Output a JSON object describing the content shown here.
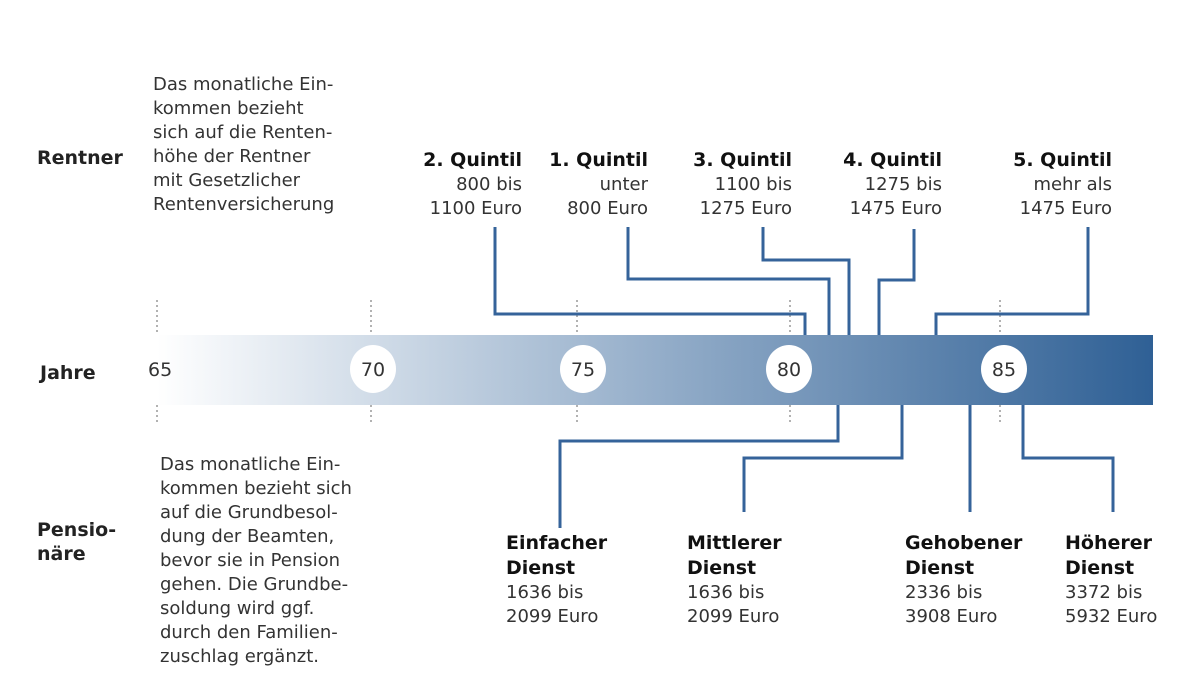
{
  "row_labels": {
    "rentner": "Rentner",
    "jahre": "Jahre",
    "pensionaere": [
      "Pensio-",
      "näre"
    ]
  },
  "rentner_note": [
    "Das monatliche Ein-",
    "kommen bezieht",
    "sich auf die Renten-",
    "höhe der Rentner",
    "mit Gesetzlicher",
    "Rentenversicherung"
  ],
  "pension_note": [
    "Das monatliche Ein-",
    "kommen bezieht sich",
    "auf die Grundbesol-",
    "dung der Beamten,",
    "bevor sie in Pension",
    "gehen. Die Grundbe-",
    "soldung wird ggf.",
    "durch den Familien-",
    "zuschlag ergänzt."
  ],
  "quintiles": [
    {
      "title": "2. Quintil",
      "l1": "800 bis",
      "l2": "1100 Euro"
    },
    {
      "title": "1. Quintil",
      "l1": "unter",
      "l2": "800 Euro"
    },
    {
      "title": "3. Quintil",
      "l1": "1100 bis",
      "l2": "1275 Euro"
    },
    {
      "title": "4. Quintil",
      "l1": "1275 bis",
      "l2": "1475 Euro"
    },
    {
      "title": "5. Quintil",
      "l1": "mehr als",
      "l2": "1475 Euro"
    }
  ],
  "dienste": [
    {
      "t1": "Einfacher",
      "t2": "Dienst",
      "l1": "1636 bis",
      "l2": "2099 Euro"
    },
    {
      "t1": "Mittlerer",
      "t2": "Dienst",
      "l1": "1636 bis",
      "l2": "2099 Euro"
    },
    {
      "t1": "Gehobener",
      "t2": "Dienst",
      "l1": "2336 bis",
      "l2": "3908 Euro"
    },
    {
      "t1": "Höherer",
      "t2": "Dienst",
      "l1": "3372 bis",
      "l2": "5932 Euro"
    }
  ],
  "axis_ticks": [
    "65",
    "70",
    "75",
    "80",
    "85"
  ],
  "colors": {
    "bar_start": "#ffffff",
    "bar_end": "#2f6095",
    "line": "#35639a"
  }
}
